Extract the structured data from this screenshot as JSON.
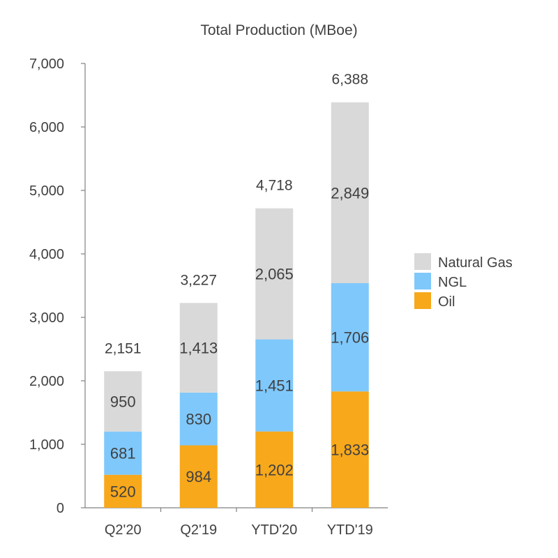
{
  "chart_data": {
    "type": "bar",
    "stacked": true,
    "title": "Total Production (MBoe)",
    "xlabel": "",
    "ylabel": "",
    "ylim": [
      0,
      7000
    ],
    "yticks": [
      0,
      1000,
      2000,
      3000,
      4000,
      5000,
      6000,
      7000
    ],
    "ytick_labels": [
      "0",
      "1,000",
      "2,000",
      "3,000",
      "4,000",
      "5,000",
      "6,000",
      "7,000"
    ],
    "grid": false,
    "legend_position": "right",
    "categories": [
      "Q2'20",
      "Q2'19",
      "YTD'20",
      "YTD'19"
    ],
    "series": [
      {
        "name": "Oil",
        "color": "#F7A81B",
        "values": [
          520,
          984,
          1202,
          1833
        ],
        "labels": [
          "520",
          "984",
          "1,202",
          "1,833"
        ]
      },
      {
        "name": "NGL",
        "color": "#7FC8FB",
        "values": [
          681,
          830,
          1451,
          1706
        ],
        "labels": [
          "681",
          "830",
          "1,451",
          "1,706"
        ]
      },
      {
        "name": "Natural Gas",
        "color": "#D9D9D9",
        "values": [
          950,
          1413,
          2065,
          2849
        ],
        "labels": [
          "950",
          "1,413",
          "2,065",
          "2,849"
        ]
      }
    ],
    "totals": [
      2151,
      3227,
      4718,
      6388
    ],
    "total_labels": [
      "2,151",
      "3,227",
      "4,718",
      "6,388"
    ],
    "legend_order": [
      "Natural Gas",
      "NGL",
      "Oil"
    ]
  }
}
